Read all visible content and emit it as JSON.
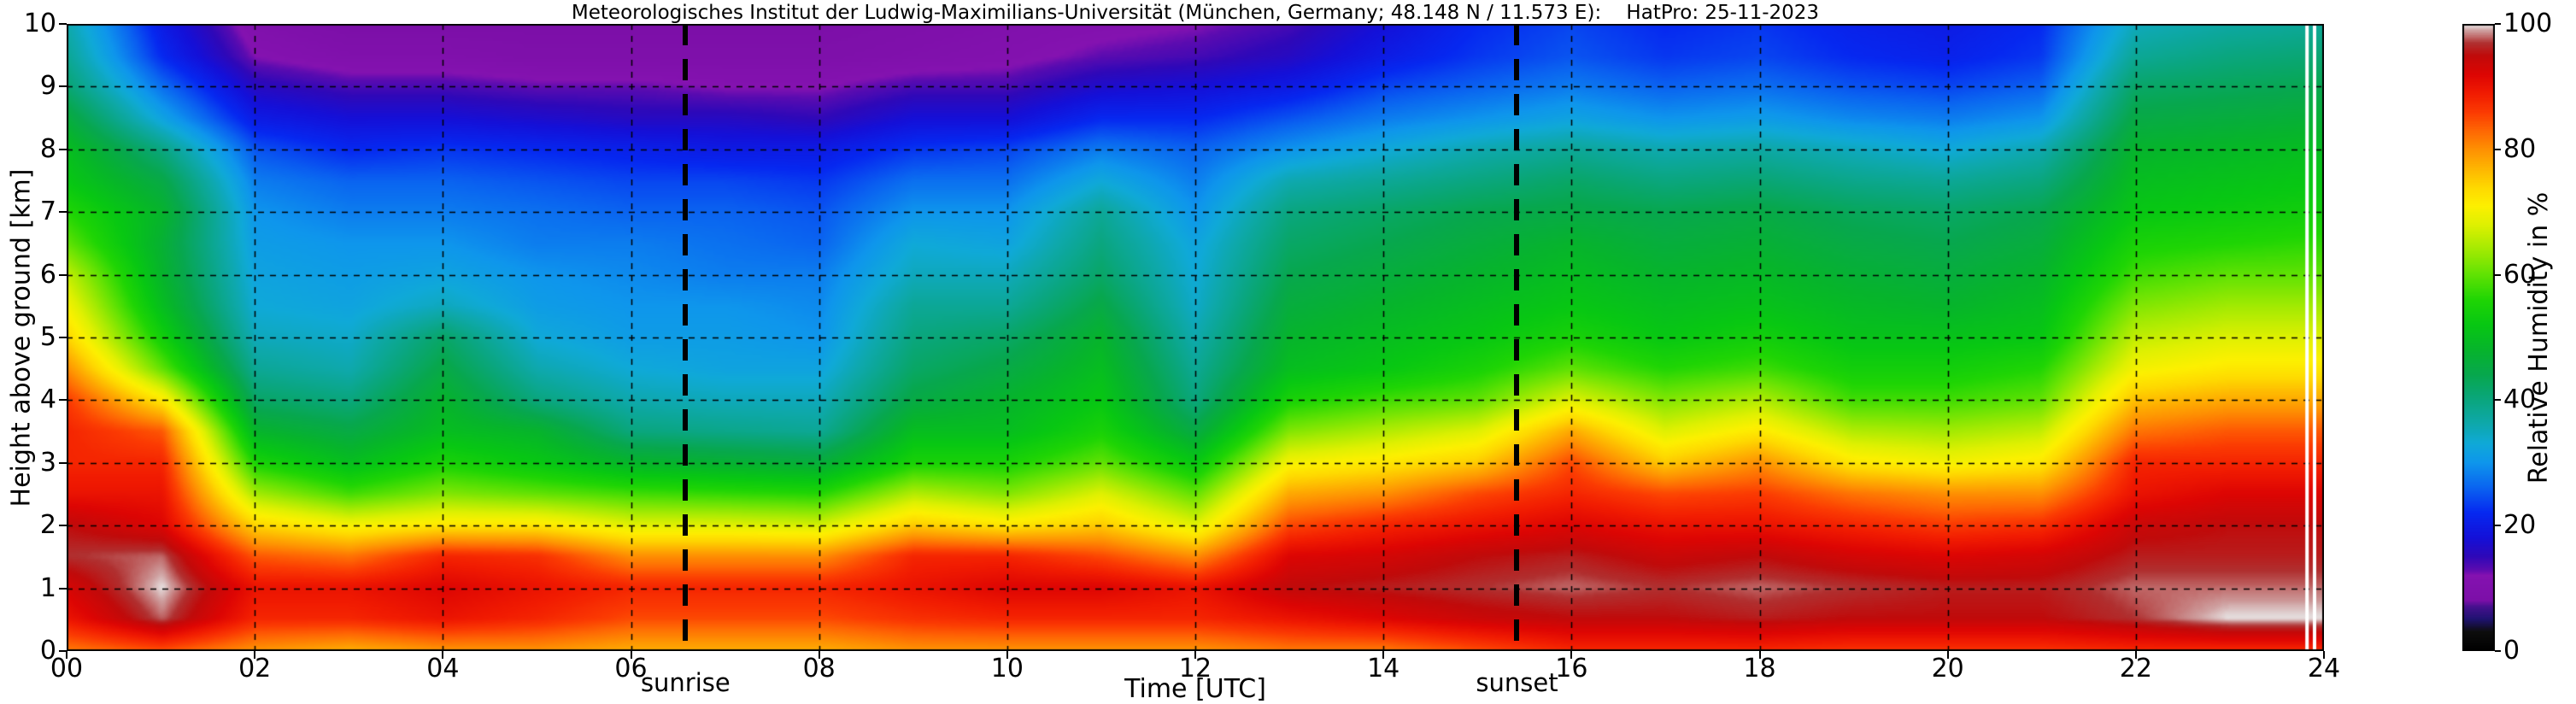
{
  "title": "Meteorologisches Institut der Ludwig-Maximilians-Universität (München, Germany; 48.148 N / 11.573 E):    HatPro: 25-11-2023",
  "chart_data": {
    "type": "heatmap",
    "title": "Meteorologisches Institut der Ludwig-Maximilians-Universität (München, Germany; 48.148 N / 11.573 E):    HatPro: 25-11-2023",
    "xlabel": "Time [UTC]",
    "ylabel": "Height above ground [km]",
    "colorbar_label": "Relative Humidity in %",
    "xlim": [
      0,
      24
    ],
    "ylim": [
      0,
      10
    ],
    "zlim": [
      0,
      100
    ],
    "x_ticks": [
      {
        "v": 0,
        "label": "00"
      },
      {
        "v": 2,
        "label": "02"
      },
      {
        "v": 4,
        "label": "04"
      },
      {
        "v": 6,
        "label": "06"
      },
      {
        "v": 8,
        "label": "08"
      },
      {
        "v": 10,
        "label": "10"
      },
      {
        "v": 12,
        "label": "12"
      },
      {
        "v": 14,
        "label": "14"
      },
      {
        "v": 16,
        "label": "16"
      },
      {
        "v": 18,
        "label": "18"
      },
      {
        "v": 20,
        "label": "20"
      },
      {
        "v": 22,
        "label": "22"
      },
      {
        "v": 24,
        "label": "24"
      }
    ],
    "y_ticks": [
      {
        "v": 0,
        "label": "0"
      },
      {
        "v": 1,
        "label": "1"
      },
      {
        "v": 2,
        "label": "2"
      },
      {
        "v": 3,
        "label": "3"
      },
      {
        "v": 4,
        "label": "4"
      },
      {
        "v": 5,
        "label": "5"
      },
      {
        "v": 6,
        "label": "6"
      },
      {
        "v": 7,
        "label": "7"
      },
      {
        "v": 8,
        "label": "8"
      },
      {
        "v": 9,
        "label": "9"
      },
      {
        "v": 10,
        "label": "10"
      }
    ],
    "colorbar_ticks": [
      {
        "v": 0,
        "label": "0"
      },
      {
        "v": 20,
        "label": "20"
      },
      {
        "v": 40,
        "label": "40"
      },
      {
        "v": 60,
        "label": "60"
      },
      {
        "v": 80,
        "label": "80"
      },
      {
        "v": 100,
        "label": "100"
      }
    ],
    "grid_x_hours": [
      2,
      4,
      6,
      8,
      10,
      12,
      14,
      16,
      18,
      20,
      22
    ],
    "grid_y_km": [
      1,
      2,
      3,
      4,
      5,
      6,
      7,
      8,
      9
    ],
    "annotations": {
      "sunrise": {
        "label": "sunrise",
        "hour_utc": 6.58
      },
      "sunset": {
        "label": "sunset",
        "hour_utc": 15.42
      }
    },
    "data_gap_hours": [
      23.82,
      23.9
    ],
    "x_hours": [
      0,
      1,
      2,
      3,
      4,
      5,
      6,
      7,
      8,
      9,
      10,
      11,
      12,
      13,
      14,
      15,
      16,
      17,
      18,
      19,
      20,
      21,
      22,
      23,
      24
    ],
    "y_km": [
      0,
      0.5,
      1,
      1.5,
      2,
      2.5,
      3,
      3.5,
      4,
      4.5,
      5,
      5.5,
      6,
      6.5,
      7,
      7.5,
      8,
      8.5,
      9,
      9.5,
      10
    ],
    "rh_percent": [
      [
        82,
        90,
        93,
        97,
        95,
        90,
        88,
        88,
        86,
        80,
        74,
        70,
        66,
        60,
        56,
        52,
        50,
        46,
        41,
        38,
        36
      ],
      [
        85,
        98,
        100,
        98,
        92,
        90,
        88,
        84,
        72,
        60,
        54,
        50,
        48,
        47,
        48,
        45,
        40,
        32,
        27,
        22,
        20
      ],
      [
        80,
        88,
        90,
        84,
        74,
        64,
        55,
        48,
        42,
        38,
        35,
        33,
        32,
        31,
        30,
        28,
        25,
        20,
        16,
        12,
        10
      ],
      [
        78,
        88,
        90,
        82,
        70,
        58,
        50,
        45,
        40,
        36,
        34,
        32,
        31,
        30,
        28,
        26,
        22,
        18,
        14,
        10,
        8
      ],
      [
        80,
        90,
        92,
        88,
        72,
        62,
        55,
        50,
        48,
        45,
        42,
        35,
        32,
        30,
        28,
        26,
        23,
        18,
        14,
        10,
        8
      ],
      [
        80,
        88,
        90,
        87,
        72,
        60,
        52,
        48,
        40,
        36,
        33,
        31,
        30,
        28,
        27,
        25,
        22,
        17,
        13,
        9,
        8
      ],
      [
        78,
        85,
        88,
        80,
        68,
        58,
        48,
        40,
        36,
        33,
        31,
        30,
        29,
        28,
        26,
        24,
        21,
        16,
        13,
        9,
        8
      ],
      [
        78,
        85,
        88,
        80,
        68,
        57,
        47,
        39,
        35,
        32,
        31,
        30,
        28,
        27,
        26,
        24,
        20,
        16,
        12,
        9,
        8
      ],
      [
        78,
        85,
        88,
        80,
        67,
        56,
        46,
        38,
        35,
        32,
        30,
        29,
        28,
        26,
        25,
        23,
        20,
        15,
        12,
        9,
        8
      ],
      [
        80,
        87,
        90,
        88,
        75,
        65,
        55,
        50,
        45,
        42,
        40,
        38,
        35,
        33,
        30,
        27,
        23,
        18,
        14,
        10,
        9
      ],
      [
        80,
        88,
        92,
        88,
        72,
        62,
        55,
        50,
        48,
        45,
        42,
        38,
        35,
        32,
        30,
        27,
        24,
        18,
        14,
        11,
        10
      ],
      [
        80,
        88,
        92,
        85,
        75,
        68,
        60,
        55,
        52,
        50,
        48,
        45,
        42,
        40,
        38,
        33,
        28,
        22,
        17,
        13,
        11
      ],
      [
        80,
        88,
        90,
        80,
        68,
        60,
        52,
        45,
        40,
        38,
        36,
        34,
        33,
        32,
        30,
        28,
        26,
        22,
        18,
        14,
        12
      ],
      [
        82,
        90,
        95,
        92,
        85,
        78,
        70,
        62,
        55,
        50,
        48,
        46,
        44,
        42,
        40,
        36,
        30,
        25,
        20,
        16,
        14
      ],
      [
        82,
        92,
        96,
        93,
        88,
        80,
        72,
        65,
        58,
        52,
        50,
        48,
        46,
        44,
        42,
        38,
        33,
        28,
        24,
        20,
        18
      ],
      [
        85,
        94,
        97,
        95,
        90,
        85,
        75,
        68,
        60,
        55,
        52,
        50,
        48,
        46,
        44,
        40,
        36,
        30,
        26,
        23,
        22
      ],
      [
        88,
        95,
        98,
        96,
        92,
        88,
        85,
        78,
        68,
        60,
        55,
        52,
        50,
        48,
        45,
        42,
        38,
        32,
        28,
        25,
        24
      ],
      [
        88,
        95,
        97,
        94,
        90,
        85,
        75,
        68,
        62,
        56,
        52,
        50,
        48,
        46,
        44,
        40,
        36,
        30,
        26,
        23,
        22
      ],
      [
        88,
        96,
        98,
        95,
        90,
        86,
        80,
        72,
        65,
        58,
        54,
        51,
        49,
        47,
        45,
        41,
        37,
        31,
        27,
        24,
        23
      ],
      [
        87,
        95,
        97,
        93,
        88,
        82,
        72,
        65,
        58,
        54,
        51,
        49,
        47,
        45,
        43,
        39,
        35,
        29,
        25,
        22,
        21
      ],
      [
        87,
        95,
        96,
        92,
        86,
        80,
        70,
        64,
        58,
        54,
        51,
        48,
        46,
        44,
        42,
        38,
        33,
        28,
        24,
        21,
        20
      ],
      [
        87,
        95,
        96,
        93,
        87,
        80,
        72,
        66,
        60,
        56,
        52,
        50,
        48,
        46,
        44,
        40,
        36,
        30,
        26,
        23,
        22
      ],
      [
        88,
        97,
        98,
        96,
        94,
        90,
        88,
        82,
        76,
        70,
        66,
        62,
        58,
        55,
        52,
        50,
        48,
        45,
        42,
        38,
        35
      ],
      [
        88,
        100,
        98,
        96,
        95,
        92,
        88,
        84,
        78,
        72,
        68,
        64,
        60,
        56,
        53,
        51,
        49,
        46,
        43,
        40,
        37
      ],
      [
        88,
        100,
        98,
        96,
        95,
        92,
        88,
        84,
        78,
        72,
        68,
        64,
        60,
        57,
        54,
        52,
        50,
        47,
        44,
        41,
        38
      ]
    ],
    "colormap_stops": [
      [
        0,
        "#000000"
      ],
      [
        3,
        "#0d0d0d"
      ],
      [
        5,
        "#1f1270"
      ],
      [
        7,
        "#46108e"
      ],
      [
        8,
        "#7c0fa8"
      ],
      [
        12,
        "#8412b0"
      ],
      [
        13,
        "#5a0bb0"
      ],
      [
        15,
        "#2f08b8"
      ],
      [
        18,
        "#1410d8"
      ],
      [
        22,
        "#0628f0"
      ],
      [
        26,
        "#0a64f0"
      ],
      [
        30,
        "#0e96ec"
      ],
      [
        33,
        "#0fa9d8"
      ],
      [
        36,
        "#0ea8ae"
      ],
      [
        40,
        "#0aa67e"
      ],
      [
        44,
        "#07a74e"
      ],
      [
        48,
        "#06b42c"
      ],
      [
        52,
        "#07c713"
      ],
      [
        56,
        "#1fd504"
      ],
      [
        60,
        "#60e203"
      ],
      [
        64,
        "#a2ea02"
      ],
      [
        68,
        "#dff001"
      ],
      [
        71,
        "#fdf000"
      ],
      [
        74,
        "#fed800"
      ],
      [
        77,
        "#feb501"
      ],
      [
        80,
        "#fe9102"
      ],
      [
        83,
        "#fe6703"
      ],
      [
        86,
        "#fb3a02"
      ],
      [
        89,
        "#f11b01"
      ],
      [
        92,
        "#dd0503"
      ],
      [
        95,
        "#c00a0a"
      ],
      [
        97,
        "#b03030"
      ],
      [
        99,
        "#cfa0a0"
      ],
      [
        100,
        "#e8e6e6"
      ]
    ]
  }
}
